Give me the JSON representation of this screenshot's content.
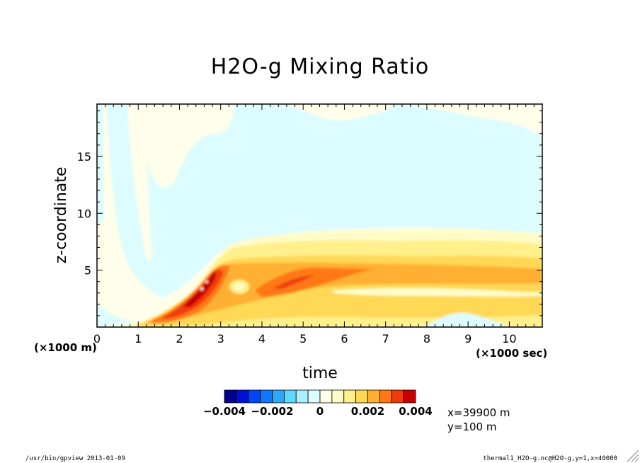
{
  "chart_data": {
    "type": "heatmap",
    "title": "H2O-g Mixing Ratio",
    "xlabel": "time",
    "ylabel": "z-coordinate",
    "x_unit": "(×1000 sec)",
    "y_unit": "(×1000 m)",
    "xlim": [
      0,
      10.8
    ],
    "ylim": [
      0,
      19.6
    ],
    "x_ticks": [
      "0",
      "1",
      "2",
      "3",
      "4",
      "5",
      "6",
      "7",
      "8",
      "9",
      "10"
    ],
    "y_ticks": [
      "5",
      "10",
      "15"
    ],
    "y_tick_values": [
      5,
      10,
      15
    ],
    "colorbar": {
      "min": -0.004,
      "max": 0.004,
      "step": 0.0005,
      "labels": [
        "−0.004",
        "−0.002",
        "0",
        "0.002",
        "0.004"
      ],
      "label_values": [
        -0.004,
        -0.002,
        0,
        0.002,
        0.004
      ],
      "colors": [
        "#00008c",
        "#0010d8",
        "#0046ff",
        "#0f78ff",
        "#2ea8ff",
        "#5fd8ff",
        "#aaf0ff",
        "#dcfcff",
        "#fefeea",
        "#fffcc8",
        "#fff08c",
        "#ffd855",
        "#ffb032",
        "#ff7814",
        "#f03c0a",
        "#c80000"
      ]
    },
    "features": [
      {
        "name": "moist plume",
        "t_start": 1.2,
        "t_peak": 2.6,
        "z_peak": 3.5,
        "level": "0.0035 to 0.004"
      },
      {
        "name": "moist layer",
        "t_range": [
          3.0,
          10.8
        ],
        "z_range": [
          2,
          6
        ],
        "level": "0.001 to 0.0025"
      },
      {
        "name": "secondary maximum",
        "t": 4.5,
        "z": 3.8,
        "level": "0.003"
      },
      {
        "name": "drying aloft",
        "t_range": [
          0.3,
          10.8
        ],
        "z_range": [
          8,
          19.6
        ],
        "level": "-0.0005 to 0"
      }
    ]
  },
  "info": {
    "x_pos": "x=39900 m",
    "y_pos": "y=100 m"
  },
  "footer": {
    "left": "/usr/bin/gpview  2013-01-09",
    "right": "thermal1_H2O-g.nc@H2O-g,y=1,x=40000"
  },
  "colors": {
    "background": "#ffffff",
    "axes": "#000000"
  }
}
